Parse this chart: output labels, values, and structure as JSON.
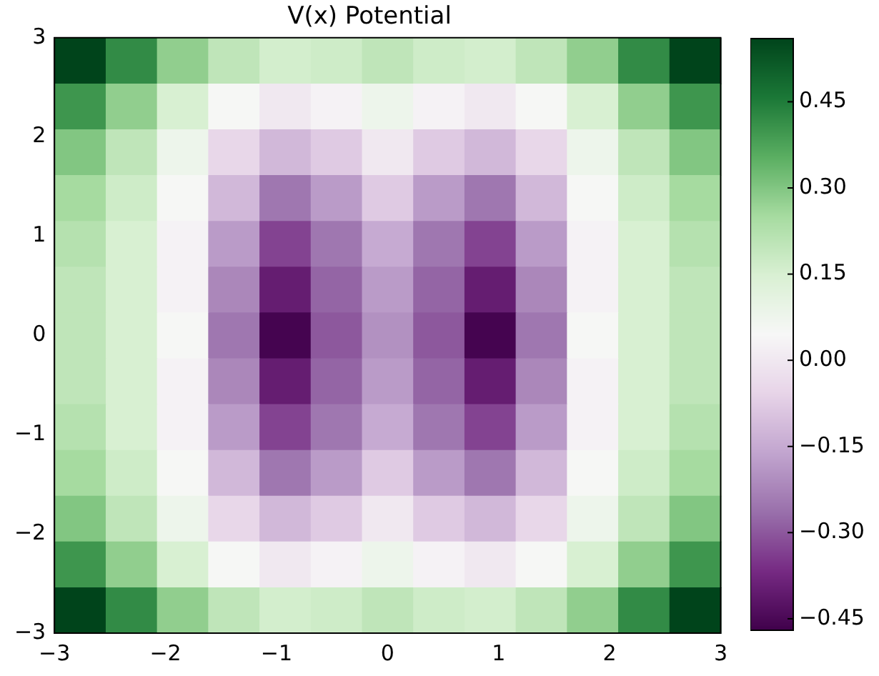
{
  "chart_data": {
    "type": "heatmap",
    "title": "V(x) Potential",
    "xlim": [
      -3,
      3
    ],
    "ylim": [
      -3,
      3
    ],
    "xticks": [
      {
        "value": -3,
        "label": "−3"
      },
      {
        "value": -2,
        "label": "−2"
      },
      {
        "value": -1,
        "label": "−1"
      },
      0,
      1,
      2,
      3
    ],
    "yticks": [
      {
        "value": -3,
        "label": "−3"
      },
      {
        "value": -2,
        "label": "−2"
      },
      {
        "value": -1,
        "label": "−1"
      },
      0,
      1,
      2,
      3
    ],
    "clim": [
      -0.47,
      0.56
    ],
    "cticks": [
      {
        "value": -0.45,
        "label": "−0.45"
      },
      {
        "value": -0.3,
        "label": "−0.30"
      },
      {
        "value": -0.15,
        "label": "−0.15"
      },
      {
        "value": 0,
        "label": "0.00"
      },
      {
        "value": 0.15,
        "label": "0.15"
      },
      {
        "value": 0.3,
        "label": "0.30"
      },
      {
        "value": 0.45,
        "label": "0.45"
      }
    ],
    "cells": [
      [
        0.56,
        0.42,
        0.28,
        0.2,
        0.16,
        0.17,
        0.2,
        0.17,
        0.16,
        0.2,
        0.28,
        0.42,
        0.56
      ],
      [
        0.4,
        0.28,
        0.15,
        0.05,
        0.0,
        0.03,
        0.08,
        0.03,
        0.0,
        0.05,
        0.15,
        0.28,
        0.4
      ],
      [
        0.3,
        0.2,
        0.08,
        -0.05,
        -0.12,
        -0.08,
        0.0,
        -0.08,
        -0.12,
        -0.05,
        0.08,
        0.2,
        0.3
      ],
      [
        0.25,
        0.17,
        0.05,
        -0.12,
        -0.25,
        -0.18,
        -0.08,
        -0.18,
        -0.25,
        -0.12,
        0.05,
        0.17,
        0.25
      ],
      [
        0.22,
        0.15,
        0.03,
        -0.18,
        -0.33,
        -0.25,
        -0.15,
        -0.25,
        -0.33,
        -0.18,
        0.03,
        0.15,
        0.22
      ],
      [
        0.2,
        0.15,
        0.03,
        -0.22,
        -0.4,
        -0.28,
        -0.18,
        -0.28,
        -0.4,
        -0.22,
        0.03,
        0.15,
        0.2
      ],
      [
        0.2,
        0.15,
        0.05,
        -0.25,
        -0.46,
        -0.3,
        -0.2,
        -0.3,
        -0.46,
        -0.25,
        0.05,
        0.15,
        0.2
      ],
      [
        0.2,
        0.15,
        0.03,
        -0.22,
        -0.4,
        -0.28,
        -0.18,
        -0.28,
        -0.4,
        -0.22,
        0.03,
        0.15,
        0.2
      ],
      [
        0.22,
        0.15,
        0.03,
        -0.18,
        -0.33,
        -0.25,
        -0.15,
        -0.25,
        -0.33,
        -0.18,
        0.03,
        0.15,
        0.22
      ],
      [
        0.25,
        0.17,
        0.05,
        -0.12,
        -0.25,
        -0.18,
        -0.08,
        -0.18,
        -0.25,
        -0.12,
        0.05,
        0.17,
        0.25
      ],
      [
        0.3,
        0.2,
        0.08,
        -0.05,
        -0.12,
        -0.08,
        0.0,
        -0.08,
        -0.12,
        -0.05,
        0.08,
        0.2,
        0.3
      ],
      [
        0.4,
        0.28,
        0.15,
        0.05,
        0.0,
        0.03,
        0.08,
        0.03,
        0.0,
        0.05,
        0.15,
        0.28,
        0.4
      ],
      [
        0.56,
        0.42,
        0.28,
        0.2,
        0.16,
        0.17,
        0.2,
        0.17,
        0.16,
        0.2,
        0.28,
        0.42,
        0.56
      ]
    ]
  }
}
